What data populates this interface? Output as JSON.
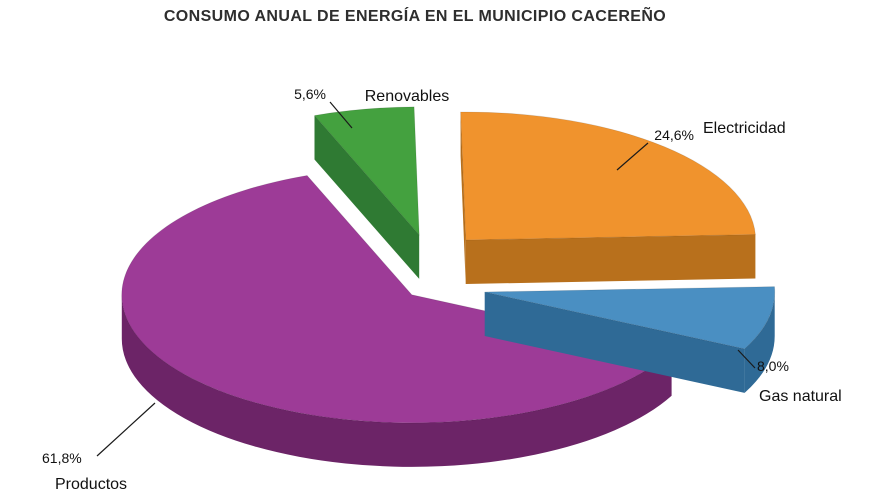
{
  "title": "CONSUMO ANUAL DE ENERGÍA EN EL MUNICIPIO CACEREÑO",
  "chart_data": {
    "type": "pie",
    "style": "3d-exploded",
    "title": "CONSUMO ANUAL DE ENERGÍA EN EL MUNICIPIO CACEREÑO",
    "unit": "%",
    "total": 100,
    "legend": "none",
    "label_style": "callout-lines",
    "background": "#ffffff",
    "slices": [
      {
        "label": "Renovables",
        "value": 5.6,
        "display_value": "5,6%",
        "color": "#44a13f",
        "side_color": "#2f7a33"
      },
      {
        "label": "Electricidad",
        "value": 24.6,
        "display_value": "24,6%",
        "color": "#f0932d",
        "side_color": "#b8701c"
      },
      {
        "label": "Gas natural",
        "value": 8.0,
        "display_value": "8,0%",
        "color": "#4a8fc2",
        "side_color": "#2f6a96"
      },
      {
        "label": "Productos",
        "value": 61.8,
        "display_value": "61,8%",
        "color": "#9d3b97",
        "side_color": "#6c2467"
      }
    ]
  }
}
